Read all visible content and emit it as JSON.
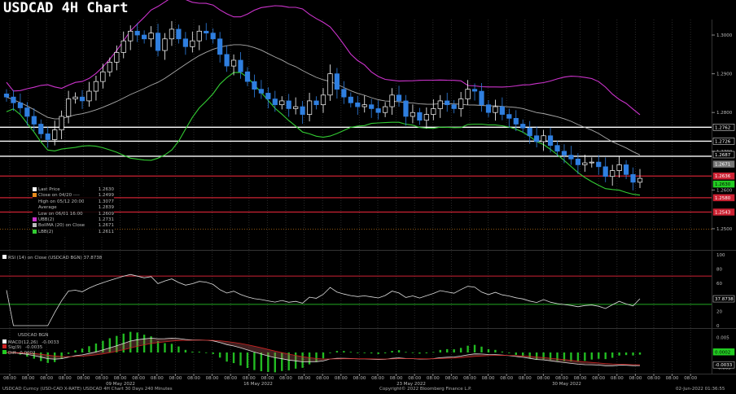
{
  "header": {
    "title": "USDCAD 4H Chart"
  },
  "legend": [
    {
      "label": "Last Price",
      "value": "1.2630",
      "color": "#ffffff"
    },
    {
      "label": "Close on 04/20 ----",
      "value": "1.2499",
      "color": "#e88a1a"
    },
    {
      "label": "High on 05/12 20:00",
      "value": "1.3077",
      "color": "#000000"
    },
    {
      "label": "Average",
      "value": "1.2839",
      "color": "#000000"
    },
    {
      "label": "Low on 06/01 16:00",
      "value": "1.2609",
      "color": "#000000"
    },
    {
      "label": "UBB(2)",
      "value": "1.2731",
      "color": "#cc33cc"
    },
    {
      "label": "BollMA (20) on Close",
      "value": "1.2671",
      "color": "#bbbbbb"
    },
    {
      "label": "LBB(2)",
      "value": "1.2611",
      "color": "#33cc33"
    }
  ],
  "rsi": {
    "title": "RSI (14) on Close (USDCAD BGN) 37.8738",
    "value_label": "37.8738",
    "ticks": [
      "100",
      "80",
      "60",
      "40",
      "20",
      "0"
    ]
  },
  "macd": {
    "title": "USDCAD BGN",
    "legend": [
      {
        "label": "MACD(12,26)",
        "value": "-0.0033",
        "color": "#ffffff"
      },
      {
        "label": "Sig(9)",
        "value": "-0.0035",
        "color": "#cc2222"
      },
      {
        "label": "Diff",
        "value": "0.0002",
        "color": "#22cc22"
      }
    ],
    "ticks": [
      "0.005",
      "0",
      "-0.005"
    ],
    "value_labels": [
      "0.0002",
      "-0.0033"
    ]
  },
  "footer": {
    "left": "USDCAD Curncy (USD-CAD X-RATE) USDCAD 4H Chart 30 Days 240 Minutes",
    "center": "Copyright© 2022 Bloomberg Finance L.P.",
    "right": "02-Jun-2022 01:36:55"
  },
  "colors": {
    "up": "#ffffff",
    "down": "#2f7fe0",
    "upper_band": "#cc33cc",
    "mid_band": "#aaaaaa",
    "lower_band": "#33cc33",
    "support": "#cc2233",
    "resistance": "#ffffff"
  },
  "chart_data": {
    "type": "candlestick",
    "price_axis": {
      "ticks": [
        "1.3000",
        "1.2900",
        "1.2800",
        "1.2700",
        "1.2600",
        "1.2500"
      ],
      "ylim": [
        1.246,
        1.304
      ]
    },
    "resistance_levels": [
      1.2762,
      1.2726,
      1.2687
    ],
    "support_levels": [
      1.2636,
      1.258,
      1.2543
    ],
    "price_labels": [
      "1.2762",
      "1.2726",
      "1.2687",
      "1.2671",
      "1.2636",
      "1.2630",
      "1.2580",
      "1.2543"
    ],
    "x_tick_labels": [
      "08:00",
      "08:00",
      "08:00",
      "08:00",
      "08:00",
      "08:00",
      "08:00",
      "08:00",
      "08:00",
      "08:00",
      "08:00",
      "08:00",
      "08:00",
      "08:00",
      "08:00",
      "08:00",
      "08:00",
      "08:00",
      "08:00",
      "08:00",
      "08:00",
      "08:00",
      "08:00",
      "08:00",
      "08:00",
      "08:00",
      "08:00",
      "08:00",
      "08:00",
      "08:00",
      "08:00",
      "08:00",
      "08:00",
      "08:00",
      "08:00",
      "08:00",
      "08:00",
      "08:00"
    ],
    "date_labels": [
      "09 May 2022",
      "16 May 2022",
      "23 May 2022",
      "30 May 2022"
    ],
    "close": [
      1.284,
      1.2825,
      1.2812,
      1.279,
      1.277,
      1.2745,
      1.273,
      1.2755,
      1.279,
      1.2835,
      1.284,
      1.283,
      1.2855,
      1.288,
      1.2905,
      1.293,
      1.2955,
      1.2985,
      1.301,
      1.3,
      1.299,
      1.3005,
      1.296,
      1.299,
      1.3015,
      1.299,
      1.297,
      1.2985,
      1.301,
      1.3005,
      1.299,
      1.295,
      1.292,
      1.2935,
      1.2905,
      1.288,
      1.286,
      1.285,
      1.2835,
      1.282,
      1.283,
      1.281,
      1.2815,
      1.2795,
      1.283,
      1.282,
      1.2845,
      1.29,
      1.286,
      1.284,
      1.2825,
      1.2815,
      1.282,
      1.281,
      1.28,
      1.2815,
      1.2845,
      1.283,
      1.279,
      1.28,
      1.278,
      1.2795,
      1.281,
      1.283,
      1.282,
      1.281,
      1.2835,
      1.286,
      1.2855,
      1.282,
      1.28,
      1.2815,
      1.2795,
      1.2785,
      1.277,
      1.276,
      1.274,
      1.2725,
      1.274,
      1.2715,
      1.27,
      1.269,
      1.268,
      1.2665,
      1.267,
      1.2672,
      1.266,
      1.2635,
      1.265,
      1.2665,
      1.264,
      1.262,
      1.263
    ]
  }
}
